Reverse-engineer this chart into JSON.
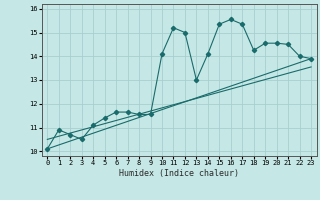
{
  "title": "",
  "xlabel": "Humidex (Indice chaleur)",
  "xlim": [
    -0.5,
    23.5
  ],
  "ylim": [
    9.8,
    16.2
  ],
  "yticks": [
    10,
    11,
    12,
    13,
    14,
    15,
    16
  ],
  "xticks": [
    0,
    1,
    2,
    3,
    4,
    5,
    6,
    7,
    8,
    9,
    10,
    11,
    12,
    13,
    14,
    15,
    16,
    17,
    18,
    19,
    20,
    21,
    22,
    23
  ],
  "background_color": "#c5e8e6",
  "grid_color": "#a8cece",
  "line_color": "#1a6b6b",
  "line1_x": [
    0,
    1,
    2,
    3,
    4,
    5,
    6,
    7,
    8,
    9,
    10,
    11,
    12,
    13,
    14,
    15,
    16,
    17,
    18,
    19,
    20,
    21,
    22,
    23
  ],
  "line1_y": [
    10.1,
    10.9,
    10.7,
    10.5,
    11.1,
    11.4,
    11.65,
    11.65,
    11.55,
    11.55,
    14.1,
    15.2,
    15.0,
    13.0,
    14.1,
    15.35,
    15.55,
    15.35,
    14.25,
    14.55,
    14.55,
    14.5,
    14.0,
    13.9
  ],
  "line2_x": [
    0,
    23
  ],
  "line2_y": [
    10.1,
    13.9
  ],
  "line3_x": [
    0,
    23
  ],
  "line3_y": [
    10.5,
    13.55
  ]
}
